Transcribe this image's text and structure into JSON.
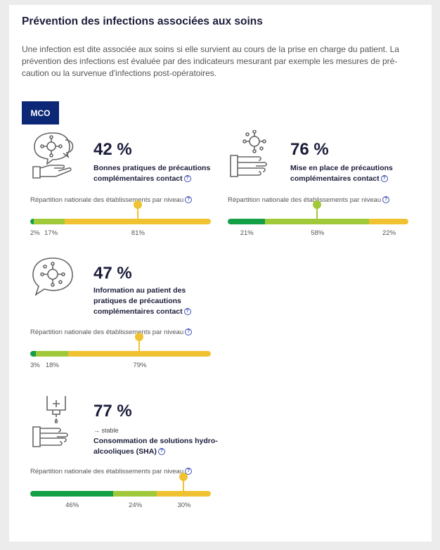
{
  "colors": {
    "tab_bg": "#0c2776",
    "dark_green": "#14a046",
    "light_green": "#a0c93a",
    "yellow": "#f0c232"
  },
  "header": {
    "title": "Prévention des infections associées aux soins",
    "intro": "Une infection est dite associée aux soins si elle survient au cours de la prise en charge du patient. La prévention des infections est évaluée par des indicateurs mesurant par exemple les mesures de pré-caution ou la survenue d'infections post-opératoires."
  },
  "tab_label": "MCO",
  "help_glyph": "?",
  "distribution_label": "Répartition nationale des établissements par niveau",
  "indicators": [
    {
      "icon": "hand-virus-speech-icon",
      "percent": "42 %",
      "label": "Bonnes pratiques de précautions complémentaires contact",
      "trend": "",
      "distribution": [
        2,
        17,
        81
      ],
      "value_labels": [
        "2%",
        "17%",
        "81%"
      ],
      "marker_segment": 2
    },
    {
      "icon": "hand-virus-icon",
      "percent": "76 %",
      "label": "Mise en place de précautions complémentaires contact",
      "trend": "",
      "distribution": [
        21,
        58,
        22
      ],
      "value_labels": [
        "21%",
        "58%",
        "22%"
      ],
      "marker_segment": 1
    },
    {
      "icon": "virus-speech-icon",
      "percent": "47 %",
      "label": "Information au patient des pratiques de précautions complémentaires contact",
      "trend": "",
      "distribution": [
        3,
        18,
        79
      ],
      "value_labels": [
        "3%",
        "18%",
        "79%"
      ],
      "marker_segment": 2
    },
    {
      "icon": "hand-sanitizer-icon",
      "percent": "77 %",
      "label": "Consommation de solutions hydro-alcooliques (SHA)",
      "trend": "→ stable",
      "distribution": [
        46,
        24,
        30
      ],
      "value_labels": [
        "46%",
        "24%",
        "30%"
      ],
      "marker_segment": 2
    }
  ]
}
